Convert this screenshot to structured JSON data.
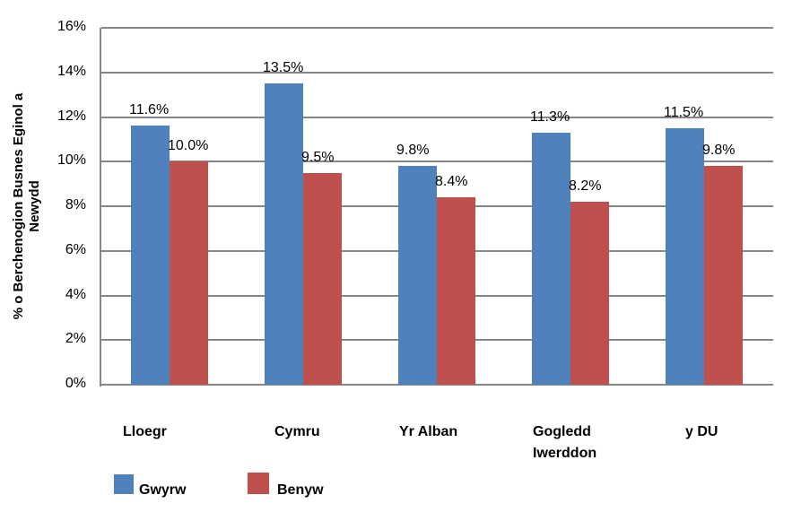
{
  "chart_data": {
    "type": "bar",
    "title": "",
    "xlabel": "",
    "ylabel": "% o Berchenogion Busnes Eginol a Newydd",
    "ylim": [
      0,
      16
    ],
    "yticks": [
      "0%",
      "2%",
      "4%",
      "6%",
      "8%",
      "10%",
      "12%",
      "14%",
      "16%"
    ],
    "categories": [
      "Lloegr",
      "Cymru",
      "Yr Alban",
      "Gogledd Iwerddon",
      "y DU"
    ],
    "series": [
      {
        "name": "Gwyrw",
        "color": "#4F81BD",
        "values": [
          11.6,
          13.5,
          9.8,
          11.3,
          11.5
        ],
        "labels": [
          "11.6%",
          "13.5%",
          "9.8%",
          "11.3%",
          "11.5%"
        ]
      },
      {
        "name": "Benyw",
        "color": "#C0504D",
        "values": [
          10.0,
          9.5,
          8.4,
          8.2,
          9.8
        ],
        "labels": [
          "10.0%",
          "9.5%",
          "8.4%",
          "8.2%",
          "9.8%"
        ]
      }
    ],
    "grid": true,
    "legend_position": "bottom-left"
  },
  "axis": {
    "ylabel_line1": "% o Berchenogion Busnes Eginol a",
    "ylabel_line2": "Newydd"
  },
  "categories_display": [
    {
      "line1": "Lloegr",
      "line2": ""
    },
    {
      "line1": "Cymru",
      "line2": ""
    },
    {
      "line1": "Yr Alban",
      "line2": ""
    },
    {
      "line1": "Gogledd",
      "line2": "Iwerddon"
    },
    {
      "line1": "y DU",
      "line2": ""
    }
  ],
  "legend": [
    {
      "label": "Gwyrw",
      "color": "#4F81BD"
    },
    {
      "label": "Benyw",
      "color": "#C0504D"
    }
  ]
}
